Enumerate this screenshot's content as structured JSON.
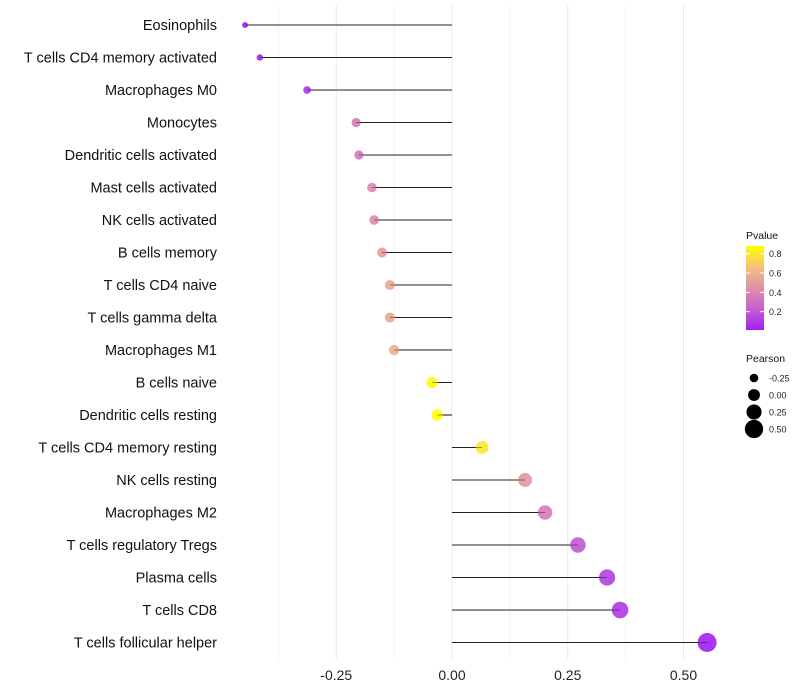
{
  "chart_data": {
    "type": "lollipop",
    "title": "",
    "xlabel": "",
    "ylabel": "",
    "xlim": [
      -0.5,
      0.58
    ],
    "x_ticks": [
      -0.25,
      0.0,
      0.25,
      0.5
    ],
    "x_tick_labels": [
      "-0.25",
      "0.00",
      "0.25",
      "0.50"
    ],
    "grid": true,
    "categories": [
      "Eosinophils",
      "T cells CD4 memory activated",
      "Macrophages M0",
      "Monocytes",
      "Dendritic cells activated",
      "Mast cells activated",
      "NK cells activated",
      "B cells memory",
      "T cells CD4 naive",
      "T cells gamma delta",
      "Macrophages M1",
      "B cells naive",
      "Dendritic cells resting",
      "T cells CD4 memory resting",
      "NK cells resting",
      "Macrophages M2",
      "T cells regulatory  Tregs",
      "Plasma cells",
      "T cells CD8",
      "T cells follicular helper"
    ],
    "pearson": [
      -0.447,
      -0.415,
      -0.313,
      -0.207,
      -0.201,
      -0.173,
      -0.168,
      -0.151,
      -0.134,
      -0.134,
      -0.125,
      -0.043,
      -0.032,
      0.065,
      0.158,
      0.201,
      0.272,
      0.335,
      0.363,
      0.551
    ],
    "pvalue": [
      0.02,
      0.03,
      0.1,
      0.35,
      0.33,
      0.4,
      0.42,
      0.5,
      0.55,
      0.55,
      0.58,
      0.86,
      0.9,
      0.8,
      0.47,
      0.35,
      0.2,
      0.12,
      0.1,
      0.01
    ],
    "legend_color": {
      "title": "Pvalue",
      "ticks": [
        0.8,
        0.6,
        0.4,
        0.2
      ],
      "tick_labels": [
        "0.8",
        "0.6",
        "0.4",
        "0.2"
      ],
      "range": [
        0.01,
        0.88
      ],
      "colors": [
        "#a020f0",
        "#c660d0",
        "#e090a8",
        "#f4c07a",
        "#ffff00"
      ]
    },
    "legend_size": {
      "title": "Pearson",
      "values": [
        -0.25,
        0.0,
        0.25,
        0.5
      ],
      "labels": [
        "-0.25",
        "0.00",
        "0.25",
        "0.50"
      ]
    },
    "legend_placement": "right"
  }
}
